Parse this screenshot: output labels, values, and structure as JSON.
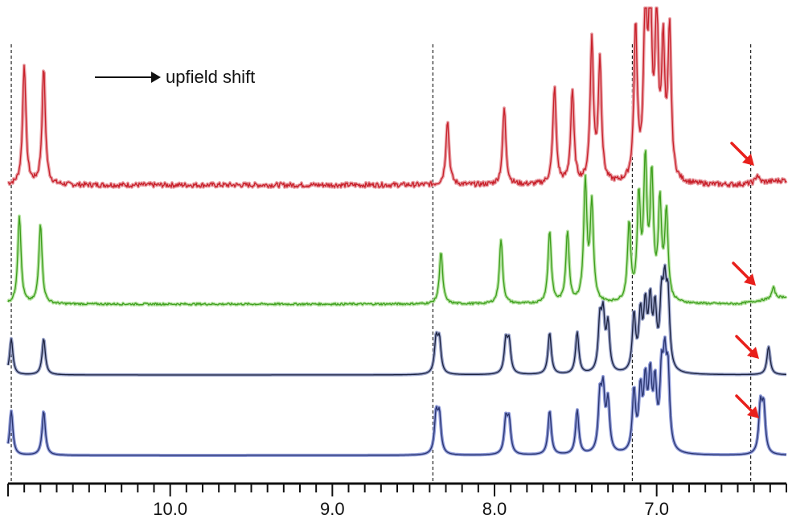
{
  "chart_data": {
    "type": "line",
    "title": "",
    "xlabel": "",
    "ylabel": "",
    "x_unit": "ppm",
    "xlim": [
      11.0,
      6.2
    ],
    "x_reversed": true,
    "grid": false,
    "tick_labels": [
      "10.0",
      "9.0",
      "8.0",
      "7.0"
    ],
    "tick_values": [
      10.0,
      9.0,
      8.0,
      7.0
    ],
    "reference_lines_ppm": [
      10.98,
      8.38,
      7.15,
      6.42
    ],
    "annotation": {
      "text": "upfield shift",
      "arrow": "right"
    },
    "markers": {
      "arrow_color": "#e8201c",
      "arrow_count": 4
    },
    "series": [
      {
        "color": "#c8202a",
        "fill": "#e9a0a6",
        "noise": 3.0,
        "peaks_ppm": [
          10.9,
          10.78,
          8.29,
          7.94,
          7.63,
          7.52,
          7.4,
          7.35,
          7.13,
          7.07,
          7.04,
          7.0,
          6.96,
          6.92,
          6.38
        ],
        "heights": [
          150,
          145,
          80,
          95,
          120,
          115,
          175,
          150,
          190,
          215,
          222,
          200,
          160,
          185,
          10
        ]
      },
      {
        "color": "#3d9e1c",
        "fill": "#b7e3a4",
        "noise": 1.2,
        "peaks_ppm": [
          10.93,
          10.8,
          8.33,
          7.96,
          7.66,
          7.55,
          7.44,
          7.4,
          7.17,
          7.11,
          7.07,
          7.03,
          6.98,
          6.94,
          6.28
        ],
        "heights": [
          110,
          100,
          65,
          80,
          90,
          88,
          148,
          120,
          95,
          125,
          168,
          150,
          120,
          110,
          14
        ]
      },
      {
        "color": "#1c2340",
        "fill": "#9aa3c9",
        "noise": 0,
        "peaks_ppm": [
          10.98,
          10.78,
          8.36,
          8.34,
          7.93,
          7.91,
          7.66,
          7.49,
          7.35,
          7.33,
          7.3,
          7.14,
          7.1,
          7.07,
          7.04,
          7.01,
          6.97,
          6.95,
          6.93,
          6.31
        ],
        "heights": [
          45,
          45,
          42,
          40,
          40,
          38,
          52,
          52,
          62,
          65,
          58,
          70,
          68,
          75,
          80,
          72,
          80,
          88,
          84,
          35
        ]
      },
      {
        "color": "#2a3570",
        "fill": "#8f9bd8",
        "noise": 0,
        "peaks_ppm": [
          10.98,
          10.78,
          8.36,
          8.34,
          7.93,
          7.91,
          7.66,
          7.49,
          7.35,
          7.33,
          7.3,
          7.14,
          7.1,
          7.07,
          7.04,
          7.01,
          6.97,
          6.95,
          6.93,
          6.36,
          6.34
        ],
        "heights": [
          55,
          55,
          48,
          46,
          42,
          40,
          55,
          55,
          66,
          70,
          62,
          75,
          72,
          80,
          86,
          78,
          86,
          95,
          90,
          58,
          56
        ]
      }
    ]
  }
}
